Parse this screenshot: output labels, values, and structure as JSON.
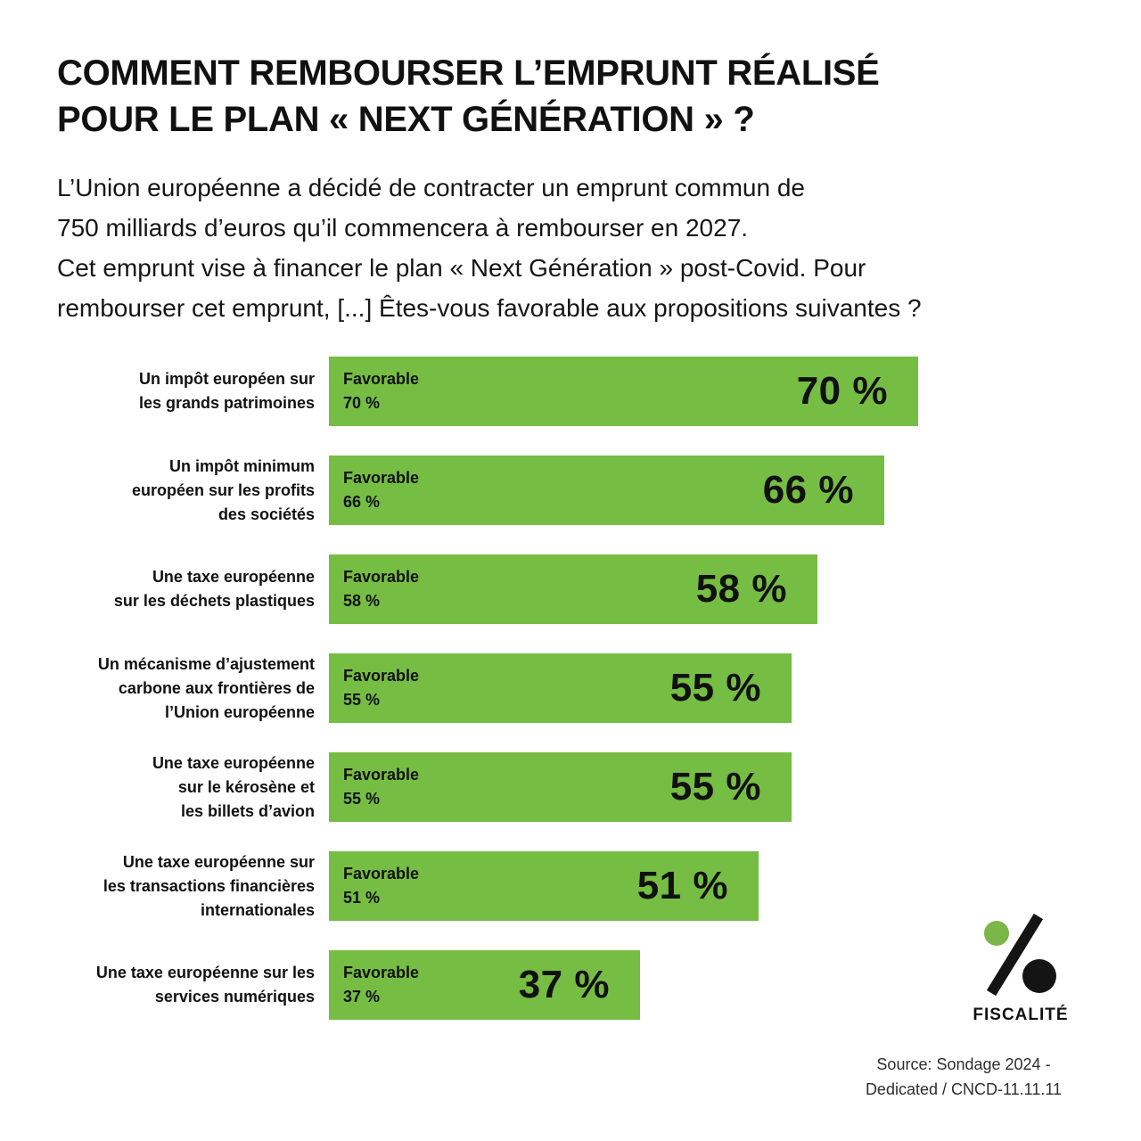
{
  "header": {
    "title": "COMMENT REMBOURSER L’EMPRUNT RÉALISÉ\nPOUR LE PLAN « NEXT GÉNÉRATION » ?",
    "intro": "L’Union européenne a décidé de contracter un emprunt commun de\n750 milliards d’euros qu’il commencera à rembourser en 2027.\nCet emprunt vise à financer le plan « Next Génération » post-Covid. Pour\nrembourser cet emprunt, [...] Êtes-vous favorable aux propositions suivantes ?"
  },
  "chart_data": {
    "type": "bar",
    "orientation": "horizontal",
    "title": "COMMENT REMBOURSER L’EMPRUNT RÉALISÉ POUR LE PLAN « NEXT GÉNÉRATION » ?",
    "subtitle": "L’Union européenne a décidé de contracter un emprunt commun de 750 milliards d’euros qu’il commencera à rembourser en 2027. Cet emprunt vise à financer le plan « Next Génération » post-Covid. Pour rembourser cet emprunt, [...] Êtes-vous favorable aux propositions suivantes ?",
    "series_label": "Favorable",
    "categories": [
      "Un impôt européen sur les grands patrimoines",
      "Un impôt minimum européen sur les profits des sociétés",
      "Une taxe européenne sur les déchets plastiques",
      "Un mécanisme d’ajustement carbone aux frontières de l’Union européenne",
      "Une taxe européenne sur le kérosène et les billets d’avion",
      "Une taxe européenne sur les transactions financières internationales",
      "Une taxe européenne sur les services numériques"
    ],
    "values": [
      70,
      66,
      58,
      55,
      55,
      51,
      37
    ],
    "value_unit": "%",
    "xlim": [
      0,
      70
    ],
    "grid": false,
    "bar_color": "#76bd44",
    "rows": [
      {
        "label": "Un impôt européen sur\nles grands patrimoines",
        "favorable_word": "Favorable",
        "favorable_pct": "70 %",
        "value_label": "70 %",
        "value": 70
      },
      {
        "label": "Un impôt minimum\neuropéen sur les profits\ndes sociétés",
        "favorable_word": "Favorable",
        "favorable_pct": "66 %",
        "value_label": "66 %",
        "value": 66
      },
      {
        "label": "Une taxe européenne\nsur les déchets plastiques",
        "favorable_word": "Favorable",
        "favorable_pct": "58 %",
        "value_label": "58 %",
        "value": 58
      },
      {
        "label": "Un mécanisme d’ajustement\ncarbone aux frontières de\nl’Union européenne",
        "favorable_word": "Favorable",
        "favorable_pct": "55 %",
        "value_label": "55 %",
        "value": 55
      },
      {
        "label": "Une taxe européenne\nsur le kérosène et\nles billets d’avion",
        "favorable_word": "Favorable",
        "favorable_pct": "55 %",
        "value_label": "55 %",
        "value": 55
      },
      {
        "label": "Une taxe européenne sur\nles transactions financières\ninternationales",
        "favorable_word": "Favorable",
        "favorable_pct": "51 %",
        "value_label": "51 %",
        "value": 51
      },
      {
        "label": "Une taxe européenne sur les\nservices numériques",
        "favorable_word": "Favorable",
        "favorable_pct": "37 %",
        "value_label": "37 %",
        "value": 37
      }
    ]
  },
  "logo": {
    "name": "percent-logo",
    "label": "FISCALITÉ",
    "green": "#7ab648",
    "black": "#141414"
  },
  "source": {
    "text": "Source: Sondage 2024 -\nDedicated / CNCD-11.11.11"
  }
}
